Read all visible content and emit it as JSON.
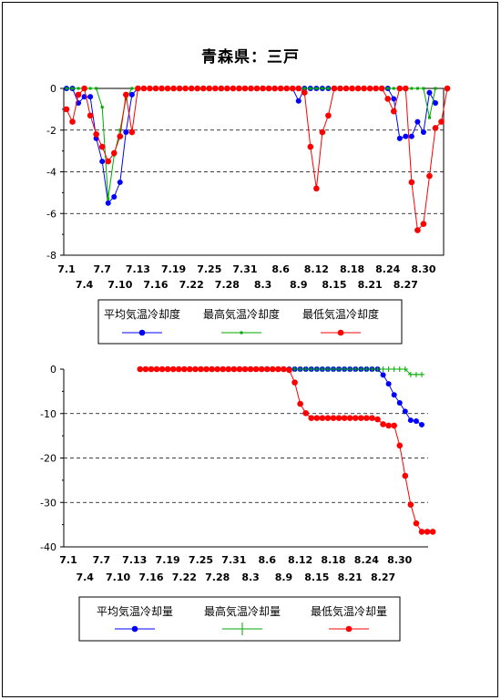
{
  "title": "青森県：三戸",
  "chart_data": [
    {
      "type": "line",
      "x_labels_row1": [
        "7.1",
        "7.7",
        "7.13",
        "7.19",
        "7.25",
        "7.31",
        "8.6",
        "8.12",
        "8.18",
        "8.24",
        "8.30"
      ],
      "x_labels_row2": [
        "7.4",
        "7.10",
        "7.16",
        "7.22",
        "7.28",
        "8.3",
        "8.9",
        "8.15",
        "8.21",
        "8.27"
      ],
      "ylim": [
        -8,
        0
      ],
      "yticks": [
        "0",
        "-2",
        "-4",
        "-6",
        "-8"
      ],
      "grid": "dashed-horizontal",
      "legend_position": "bottom",
      "series": [
        {
          "name": "平均気温冷却度",
          "color": "#0000ff",
          "values": [
            0,
            0,
            -0.7,
            -0.4,
            -0.4,
            -2.4,
            -3.5,
            -5.5,
            -5.2,
            -4.5,
            -2.1,
            -0.3,
            0,
            0,
            0,
            0,
            0,
            0,
            0,
            0,
            0,
            0,
            0,
            0,
            0,
            0,
            0,
            0,
            0,
            0,
            0,
            0,
            0,
            0,
            0,
            0,
            0,
            0,
            0,
            -0.6,
            0,
            0,
            0,
            0,
            0,
            0,
            0,
            0,
            0,
            0,
            0,
            0,
            0,
            0,
            0,
            -0.5,
            -2.4,
            -2.3,
            -2.3,
            -1.6,
            -2.1,
            -0.2,
            -0.7
          ]
        },
        {
          "name": "最高気温冷却度",
          "color": "#00aa00",
          "values": [
            0,
            0,
            0,
            0,
            0,
            0,
            -0.9,
            -5.3,
            -3.2,
            -2.0,
            -0.5,
            0,
            0,
            0,
            0,
            0,
            0,
            0,
            0,
            0,
            0,
            0,
            0,
            0,
            0,
            0,
            0,
            0,
            0,
            0,
            0,
            0,
            0,
            0,
            0,
            0,
            0,
            0,
            0,
            0,
            0,
            0,
            0,
            0,
            0,
            0,
            0,
            0,
            0,
            0,
            0,
            0,
            0,
            0,
            0,
            0,
            0,
            0,
            0,
            0,
            0,
            -1.4,
            0
          ]
        },
        {
          "name": "最低気温冷却度",
          "color": "#ff0000",
          "values": [
            -1.0,
            -1.6,
            -0.3,
            0,
            -1.3,
            -2.2,
            -2.8,
            -3.5,
            -3.1,
            -2.3,
            -0.3,
            -2.1,
            0,
            0,
            0,
            0,
            0,
            0,
            0,
            0,
            0,
            0,
            0,
            0,
            0,
            0,
            0,
            0,
            0,
            0,
            0,
            0,
            0,
            0,
            0,
            0,
            0,
            0,
            0,
            0,
            -0.2,
            -2.8,
            -4.8,
            -2.1,
            -1.3,
            0,
            0,
            0,
            0,
            0,
            0,
            0,
            0,
            0,
            -0.5,
            -1.1,
            0,
            0,
            -4.5,
            -6.8,
            -6.5,
            -4.2,
            -1.9,
            -1.6,
            0
          ]
        }
      ]
    },
    {
      "type": "line",
      "x_labels_row1": [
        "7.1",
        "7.7",
        "7.13",
        "7.19",
        "7.25",
        "7.31",
        "8.6",
        "8.12",
        "8.18",
        "8.24",
        "8.30"
      ],
      "x_labels_row2": [
        "7.4",
        "7.10",
        "7.16",
        "7.22",
        "7.28",
        "8.3",
        "8.9",
        "8.15",
        "8.21",
        "8.27"
      ],
      "ylim": [
        -40,
        0
      ],
      "yticks": [
        "0",
        "-10",
        "-20",
        "-30",
        "-40"
      ],
      "grid": "dashed-horizontal",
      "legend_position": "bottom",
      "series": [
        {
          "name": "平均気温冷却量",
          "color": "#0000ff",
          "values": [
            null,
            null,
            null,
            null,
            null,
            null,
            null,
            null,
            null,
            null,
            null,
            null,
            null,
            null,
            null,
            null,
            null,
            null,
            null,
            null,
            null,
            null,
            null,
            null,
            null,
            null,
            null,
            null,
            null,
            null,
            null,
            null,
            null,
            null,
            0,
            0,
            0,
            0,
            0,
            0,
            0,
            0,
            0,
            0,
            0,
            0,
            0,
            0,
            0,
            0,
            0,
            0,
            0,
            0,
            0,
            0,
            0,
            -1.3,
            -3.3,
            -5.8,
            -7.6,
            -9.5,
            -11.5,
            -11.7,
            -12.5
          ]
        },
        {
          "name": "最高気温冷却量",
          "color": "#00aa00",
          "values": [
            null,
            null,
            null,
            null,
            null,
            null,
            null,
            null,
            null,
            null,
            null,
            null,
            null,
            null,
            null,
            null,
            null,
            null,
            null,
            null,
            null,
            null,
            null,
            null,
            null,
            null,
            null,
            null,
            null,
            null,
            null,
            null,
            null,
            null,
            0,
            0,
            0,
            0,
            0,
            0,
            0,
            0,
            0,
            0,
            0,
            0,
            0,
            0,
            0,
            0,
            0,
            0,
            0,
            0,
            0,
            0,
            0,
            0,
            0,
            0,
            0,
            0,
            -1.2,
            -1.2,
            -1.2
          ]
        },
        {
          "name": "最低気温冷却量",
          "color": "#ff0000",
          "values": [
            null,
            null,
            null,
            null,
            null,
            null,
            null,
            null,
            null,
            null,
            null,
            null,
            null,
            0,
            0,
            0,
            0,
            0,
            0,
            0,
            0,
            0,
            0,
            0,
            0,
            0,
            0,
            0,
            0,
            0,
            0,
            0,
            0,
            0,
            0,
            0,
            0,
            0,
            0,
            0,
            -0.2,
            -3.0,
            -7.8,
            -9.9,
            -11,
            -11,
            -11,
            -11,
            -11,
            -11,
            -11,
            -11,
            -11,
            -11,
            -11,
            -11,
            -11.3,
            -12.4,
            -12.7,
            -12.7,
            -17.2,
            -24,
            -30.5,
            -34.7,
            -36.6,
            -36.6,
            -36.6
          ]
        }
      ]
    }
  ]
}
